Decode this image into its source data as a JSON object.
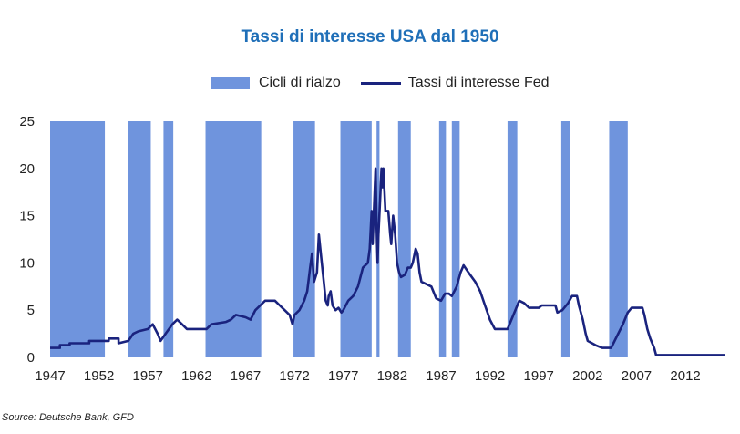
{
  "chart_data": {
    "type": "line",
    "title": "Tassi di interesse USA dal 1950",
    "xlabel": "",
    "ylabel": "",
    "xlim": [
      1947,
      2016
    ],
    "ylim": [
      0,
      25
    ],
    "x_ticks": [
      "1947",
      "1952",
      "1957",
      "1962",
      "1967",
      "1972",
      "1977",
      "1982",
      "1987",
      "1992",
      "1997",
      "2002",
      "2007",
      "2012"
    ],
    "y_ticks": [
      "0",
      "5",
      "10",
      "15",
      "20",
      "25"
    ],
    "grid": false,
    "legend_position": "top",
    "series": [
      {
        "name": "Cicli di rialzo",
        "kind": "shaded-periods",
        "color": "#6f94dd",
        "periods": [
          [
            1947.0,
            1952.6
          ],
          [
            1955.0,
            1957.3
          ],
          [
            1958.6,
            1959.6
          ],
          [
            1962.9,
            1968.6
          ],
          [
            1971.9,
            1974.1
          ],
          [
            1976.7,
            1979.9
          ],
          [
            1980.4,
            1980.7
          ],
          [
            1982.6,
            1983.9
          ],
          [
            1986.8,
            1987.5
          ],
          [
            1988.1,
            1988.9
          ],
          [
            1993.8,
            1994.8
          ],
          [
            1999.3,
            2000.2
          ],
          [
            2004.2,
            2006.1
          ]
        ]
      },
      {
        "name": "Tassi di interesse Fed",
        "kind": "line",
        "color": "#1a237e",
        "points": [
          [
            1947,
            1
          ],
          [
            1948,
            1
          ],
          [
            1948,
            1.3
          ],
          [
            1949,
            1.3
          ],
          [
            1949,
            1.5
          ],
          [
            1951,
            1.5
          ],
          [
            1951,
            1.75
          ],
          [
            1953,
            1.75
          ],
          [
            1953,
            2.0
          ],
          [
            1954,
            2.0
          ],
          [
            1954,
            1.5
          ],
          [
            1955,
            1.75
          ],
          [
            1955.5,
            2.5
          ],
          [
            1956,
            2.75
          ],
          [
            1957,
            3.0
          ],
          [
            1957.5,
            3.5
          ],
          [
            1958,
            2.5
          ],
          [
            1958.3,
            1.75
          ],
          [
            1958.8,
            2.5
          ],
          [
            1959.5,
            3.5
          ],
          [
            1960,
            4.0
          ],
          [
            1960.5,
            3.5
          ],
          [
            1961,
            3.0
          ],
          [
            1963,
            3.0
          ],
          [
            1963.5,
            3.5
          ],
          [
            1965,
            3.75
          ],
          [
            1965.5,
            4.0
          ],
          [
            1966,
            4.5
          ],
          [
            1967,
            4.25
          ],
          [
            1967.5,
            4.0
          ],
          [
            1968,
            5.0
          ],
          [
            1968.5,
            5.5
          ],
          [
            1969,
            6.0
          ],
          [
            1970,
            6.0
          ],
          [
            1970.5,
            5.5
          ],
          [
            1971,
            5.0
          ],
          [
            1971.5,
            4.5
          ],
          [
            1971.8,
            3.5
          ],
          [
            1972,
            4.5
          ],
          [
            1972.5,
            5.0
          ],
          [
            1973,
            6.0
          ],
          [
            1973.3,
            7.0
          ],
          [
            1973.6,
            9.5
          ],
          [
            1973.8,
            11.0
          ],
          [
            1974,
            8.0
          ],
          [
            1974.3,
            9.0
          ],
          [
            1974.5,
            13.0
          ],
          [
            1974.8,
            10.0
          ],
          [
            1975,
            8.0
          ],
          [
            1975.2,
            6.0
          ],
          [
            1975.4,
            5.5
          ],
          [
            1975.5,
            6.5
          ],
          [
            1975.7,
            7.0
          ],
          [
            1975.9,
            5.5
          ],
          [
            1976.2,
            5.0
          ],
          [
            1976.5,
            5.25
          ],
          [
            1976.8,
            4.75
          ],
          [
            1977,
            5.0
          ],
          [
            1977.5,
            6.0
          ],
          [
            1978,
            6.5
          ],
          [
            1978.5,
            7.5
          ],
          [
            1979,
            9.5
          ],
          [
            1979.5,
            10.0
          ],
          [
            1979.7,
            11.5
          ],
          [
            1979.9,
            15.5
          ],
          [
            1980,
            12.0
          ],
          [
            1980.2,
            17.5
          ],
          [
            1980.3,
            20.0
          ],
          [
            1980.4,
            14.0
          ],
          [
            1980.5,
            10.0
          ],
          [
            1980.6,
            13.0
          ],
          [
            1980.8,
            17.5
          ],
          [
            1980.9,
            20.0
          ],
          [
            1981.0,
            18.0
          ],
          [
            1981.1,
            20.0
          ],
          [
            1981.3,
            15.5
          ],
          [
            1981.6,
            15.5
          ],
          [
            1981.8,
            13.0
          ],
          [
            1981.9,
            12.0
          ],
          [
            1982.1,
            15.0
          ],
          [
            1982.3,
            13.0
          ],
          [
            1982.5,
            10.0
          ],
          [
            1982.7,
            9.0
          ],
          [
            1982.9,
            8.5
          ],
          [
            1983.3,
            8.75
          ],
          [
            1983.6,
            9.5
          ],
          [
            1983.9,
            9.5
          ],
          [
            1984.1,
            10.0
          ],
          [
            1984.4,
            11.5
          ],
          [
            1984.6,
            11.0
          ],
          [
            1984.8,
            9.0
          ],
          [
            1985,
            8.0
          ],
          [
            1985.5,
            7.75
          ],
          [
            1986,
            7.5
          ],
          [
            1986.5,
            6.25
          ],
          [
            1987,
            6.0
          ],
          [
            1987.4,
            6.75
          ],
          [
            1987.8,
            6.75
          ],
          [
            1988.1,
            6.5
          ],
          [
            1988.6,
            7.5
          ],
          [
            1989.0,
            9.0
          ],
          [
            1989.3,
            9.75
          ],
          [
            1989.8,
            9.0
          ],
          [
            1990.5,
            8.0
          ],
          [
            1991,
            7.0
          ],
          [
            1991.5,
            5.5
          ],
          [
            1992,
            4.0
          ],
          [
            1992.5,
            3.0
          ],
          [
            1993.8,
            3.0
          ],
          [
            1994.2,
            4.0
          ],
          [
            1994.6,
            5.0
          ],
          [
            1995,
            6.0
          ],
          [
            1995.5,
            5.75
          ],
          [
            1996,
            5.25
          ],
          [
            1997,
            5.25
          ],
          [
            1997.3,
            5.5
          ],
          [
            1998.7,
            5.5
          ],
          [
            1998.9,
            4.75
          ],
          [
            1999.4,
            5.0
          ],
          [
            2000,
            5.75
          ],
          [
            2000.4,
            6.5
          ],
          [
            2000.9,
            6.5
          ],
          [
            2001.1,
            5.5
          ],
          [
            2001.5,
            4.0
          ],
          [
            2001.8,
            2.5
          ],
          [
            2002,
            1.75
          ],
          [
            2002.9,
            1.25
          ],
          [
            2003.5,
            1.0
          ],
          [
            2004.4,
            1.0
          ],
          [
            2005,
            2.25
          ],
          [
            2005.6,
            3.5
          ],
          [
            2006.1,
            4.75
          ],
          [
            2006.5,
            5.25
          ],
          [
            2007.6,
            5.25
          ],
          [
            2007.8,
            4.5
          ],
          [
            2008.1,
            3.0
          ],
          [
            2008.4,
            2.0
          ],
          [
            2008.8,
            1.0
          ],
          [
            2009,
            0.25
          ],
          [
            2016,
            0.25
          ]
        ]
      }
    ],
    "source": "Source: Deutsche Bank, GFD"
  }
}
